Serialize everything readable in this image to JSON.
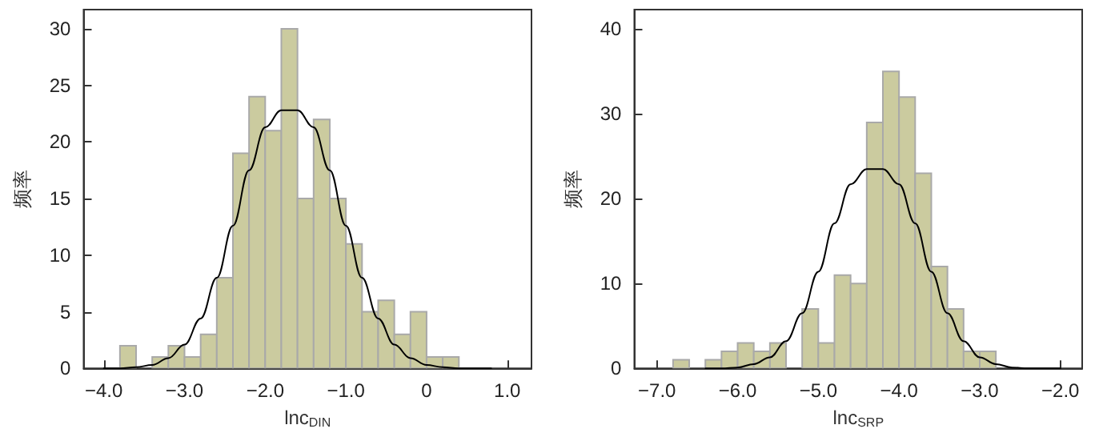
{
  "chart_data": [
    {
      "type": "histogram",
      "xlabel": "lnc$_{DIN}$",
      "ylabel": "频率",
      "color": "#cbcb9f",
      "grid": false,
      "bins": [
        -3.8,
        -3.6,
        -3.4,
        -3.2,
        -3.0,
        -2.8,
        -2.6,
        -2.4,
        -2.2,
        -2.0,
        -1.8,
        -1.6,
        -1.4,
        -1.2,
        -1.0,
        -0.8,
        -0.6,
        -0.4,
        -0.2,
        0.0,
        0.2,
        0.4
      ],
      "values": [
        2,
        0,
        1,
        2,
        1,
        3,
        8,
        19,
        24,
        21,
        30,
        15,
        22,
        15,
        11,
        5,
        6,
        3,
        5,
        1,
        1
      ],
      "series": [
        {
          "type": "line",
          "color": "#000000",
          "marker": "none",
          "x": [
            -4.0,
            -3.8,
            -3.6,
            -3.4,
            -3.2,
            -3.0,
            -2.8,
            -2.6,
            -2.4,
            -2.2,
            -2.0,
            -1.8,
            -1.6,
            -1.4,
            -1.2,
            -1.0,
            -0.8,
            -0.6,
            -0.4,
            -0.2,
            0.0,
            0.2,
            0.4,
            0.6,
            0.8
          ],
          "values": [
            0.0,
            0.0,
            0.1,
            0.3,
            0.9,
            2.1,
            4.4,
            8.0,
            12.6,
            17.5,
            21.3,
            22.8,
            22.8,
            21.3,
            17.5,
            12.6,
            8.0,
            4.4,
            2.1,
            0.9,
            0.3,
            0.1,
            0.0,
            0.0,
            0.0
          ]
        }
      ],
      "xlim": [
        -4.25,
        1.3
      ],
      "ylim": [
        0,
        31.7
      ],
      "xticks": [
        {
          "value": -4,
          "label": "−4.0"
        },
        {
          "value": -3,
          "label": "−3.0"
        },
        {
          "value": -2,
          "label": "−2.0"
        },
        {
          "value": -1,
          "label": "−1.0"
        },
        0,
        {
          "value": 1,
          "label": "1.0"
        }
      ],
      "yticks": [
        0,
        5,
        10,
        15,
        20,
        25,
        30
      ]
    },
    {
      "type": "histogram",
      "xlabel": "lnc$_{SRP}$",
      "ylabel": "频率",
      "color": "#cbcb9f",
      "grid": false,
      "bins": [
        -6.8,
        -6.6,
        -6.4,
        -6.2,
        -6.0,
        -5.8,
        -5.6,
        -5.4,
        -5.2,
        -5.0,
        -4.8,
        -4.6,
        -4.4,
        -4.2,
        -4.0,
        -3.8,
        -3.6,
        -3.4,
        -3.2,
        -3.0,
        -2.8
      ],
      "values": [
        1,
        0,
        1,
        2,
        3,
        2,
        3,
        0,
        7,
        3,
        11,
        10,
        29,
        35,
        32,
        23,
        12,
        7,
        2,
        2
      ],
      "series": [
        {
          "type": "line",
          "color": "#000000",
          "marker": "none",
          "x": [
            -6.4,
            -6.2,
            -6.0,
            -5.8,
            -5.6,
            -5.4,
            -5.2,
            -5.0,
            -4.8,
            -4.6,
            -4.4,
            -4.2,
            -4.0,
            -3.8,
            -3.6,
            -3.4,
            -3.2,
            -3.0,
            -2.8,
            -2.6,
            -2.4,
            -2.2,
            -2.0
          ],
          "values": [
            0.0,
            0.0,
            0.1,
            0.5,
            1.3,
            3.2,
            6.5,
            11.4,
            17.1,
            21.7,
            23.5,
            23.5,
            21.7,
            17.1,
            11.4,
            6.5,
            3.2,
            1.3,
            0.5,
            0.1,
            0.0,
            0.0,
            0.0
          ]
        }
      ],
      "xlim": [
        -7.28,
        -1.73
      ],
      "ylim": [
        0,
        42.3
      ],
      "xticks": [
        {
          "value": -7,
          "label": "−7.0"
        },
        {
          "value": -6,
          "label": "−6.0"
        },
        {
          "value": -5,
          "label": "−5.0"
        },
        {
          "value": -4,
          "label": "−4.0"
        },
        {
          "value": -3,
          "label": "−3.0"
        },
        {
          "value": -2,
          "label": "−2.0"
        }
      ],
      "yticks": [
        0,
        10,
        20,
        30,
        40
      ]
    }
  ]
}
